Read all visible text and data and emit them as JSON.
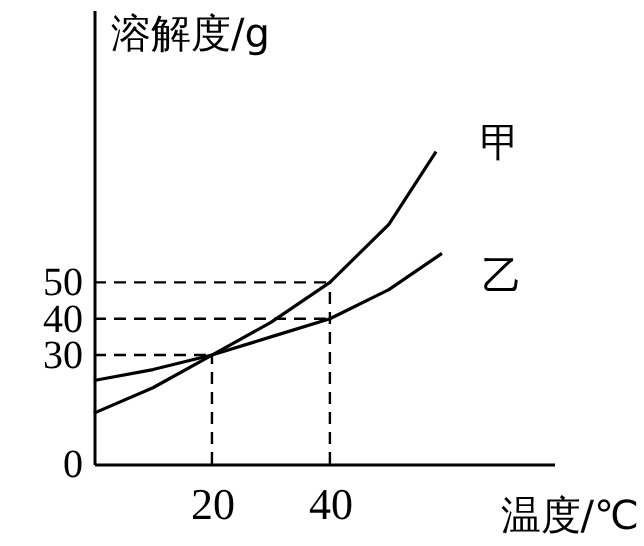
{
  "chart_data": {
    "type": "line",
    "xlabel": "温度/℃",
    "ylabel": "溶解度/g",
    "series": [
      {
        "name": "甲",
        "color": "#000000",
        "x": [
          0,
          10,
          20,
          30,
          40,
          50,
          58
        ],
        "values": [
          14,
          21,
          30,
          39,
          50,
          66,
          86
        ]
      },
      {
        "name": "乙",
        "color": "#000000",
        "x": [
          0,
          10,
          20,
          30,
          40,
          50,
          59
        ],
        "values": [
          23,
          26,
          30,
          35,
          40,
          48,
          58
        ]
      }
    ],
    "xlim": [
      0,
      78
    ],
    "ylim": [
      0,
      125
    ],
    "xticks": [
      20,
      40
    ],
    "yticks": [
      0,
      30,
      40,
      50
    ],
    "ref_lines": [
      {
        "axis": "y",
        "value": 30,
        "line_style": "dashed"
      },
      {
        "axis": "y",
        "value": 40,
        "line_style": "dashed"
      },
      {
        "axis": "y",
        "value": 50,
        "line_style": "dashed"
      },
      {
        "axis": "x",
        "value": 20,
        "line_style": "dashed"
      },
      {
        "axis": "x",
        "value": 40,
        "line_style": "dashed"
      }
    ],
    "grid": false,
    "legend": false,
    "marker": "none",
    "line_style": "solid"
  }
}
